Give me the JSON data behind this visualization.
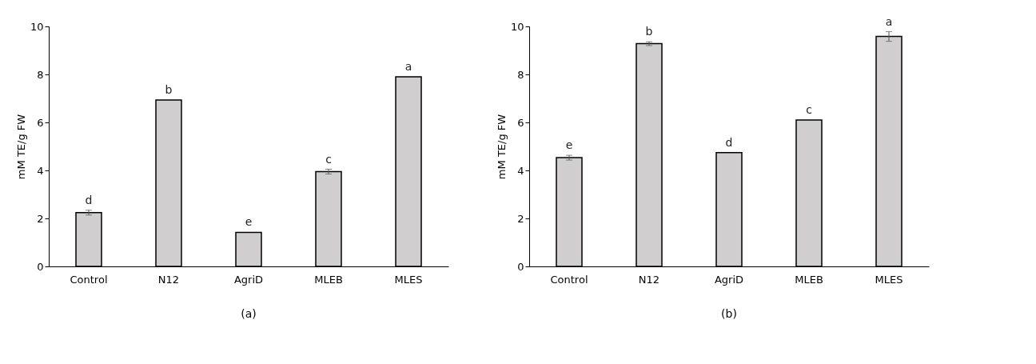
{
  "chart_data": [
    {
      "type": "bar",
      "title": "(a)",
      "ylabel": "mM TE/g FW",
      "categories": [
        "Control",
        "N12",
        "AgriD",
        "MLEB",
        "MLES"
      ],
      "values": [
        2.24,
        6.93,
        1.42,
        3.95,
        7.9
      ],
      "errors": [
        0.1,
        null,
        null,
        0.1,
        null
      ],
      "color": "#d0cece",
      "ylim": [
        0,
        10
      ],
      "yticks": [
        0,
        2,
        4,
        6,
        8,
        10
      ],
      "grid": false,
      "annotations": [
        {
          "text": "d",
          "x": "Control",
          "y": 2.34
        },
        {
          "text": "b",
          "x": "N12",
          "y": 6.93
        },
        {
          "text": "e",
          "x": "AgriD",
          "y": 1.42
        },
        {
          "text": "c",
          "x": "MLEB",
          "y": 4.05
        },
        {
          "text": "a",
          "x": "MLES",
          "y": 7.9
        }
      ]
    },
    {
      "type": "bar",
      "title": "(b)",
      "ylabel": "mM TE/g FW",
      "categories": [
        "Control",
        "N12",
        "AgriD",
        "MLEB",
        "MLES"
      ],
      "values": [
        4.53,
        9.28,
        4.74,
        6.1,
        9.58
      ],
      "errors": [
        0.1,
        0.08,
        null,
        null,
        0.2
      ],
      "color": "#d0cece",
      "ylim": [
        0,
        10
      ],
      "yticks": [
        0,
        2,
        4,
        6,
        8,
        10
      ],
      "grid": false,
      "annotations": [
        {
          "text": "e",
          "x": "Control",
          "y": 4.63
        },
        {
          "text": "b",
          "x": "N12",
          "y": 9.36
        },
        {
          "text": "d",
          "x": "AgriD",
          "y": 4.74
        },
        {
          "text": "c",
          "x": "MLEB",
          "y": 6.1
        },
        {
          "text": "a",
          "x": "MLES",
          "y": 9.78
        }
      ]
    }
  ]
}
